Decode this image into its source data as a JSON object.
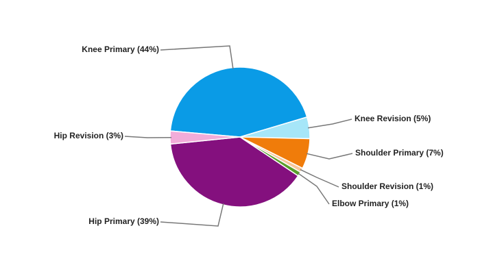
{
  "chart_data": {
    "type": "pie",
    "categories": [
      "Knee Primary (44%)",
      "Knee Revision (5%)",
      "Shoulder Primary (7%)",
      "Shoulder Revision (1%)",
      "Elbow Primary (1%)",
      "Hip Primary (39%)",
      "Hip Revision (3%)"
    ],
    "values": [
      44,
      5,
      7,
      1,
      1,
      39,
      3
    ],
    "colors": [
      "#0a9be6",
      "#a6e6f8",
      "#f07c0a",
      "#f7c79a",
      "#5aa02c",
      "#84107e",
      "#f2acd9"
    ]
  }
}
